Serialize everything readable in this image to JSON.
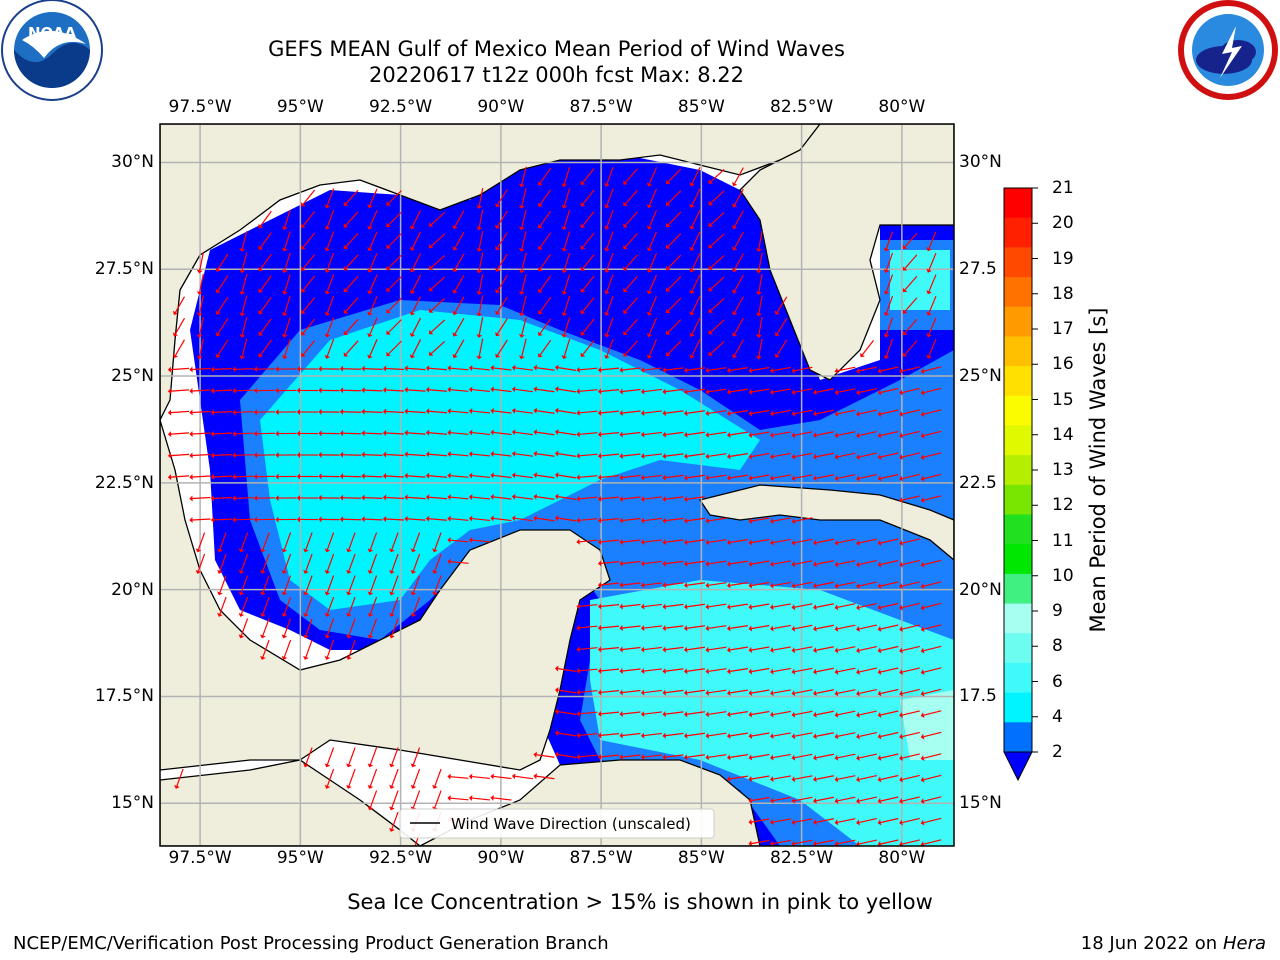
{
  "title": {
    "line1": "GEFS MEAN Gulf of Mexico Mean Period of Wind Waves",
    "line2": "20220617 t12z 000h fcst   Max: 8.22"
  },
  "logos": {
    "noaa_text": "NOAA",
    "noaa_ring": "NATIONAL OCEANIC AND ATMOSPHERIC ADMINISTRATION · U.S. DEPARTMENT OF COMMERCE",
    "nws_ring": "NATIONAL WEATHER SERVICE"
  },
  "map": {
    "lon_range": [
      -98.5,
      -78.7
    ],
    "lat_range": [
      14.0,
      30.9
    ],
    "lon_ticks": [
      "97.5°W",
      "95°W",
      "92.5°W",
      "90°W",
      "87.5°W",
      "85°W",
      "82.5°W",
      "80°W"
    ],
    "lat_ticks_left": [
      "30°N",
      "27.5°N",
      "25°N",
      "22.5°N",
      "20°N",
      "17.5°N",
      "15°N"
    ],
    "lat_ticks_right": [
      "30°N",
      "27.5",
      "25°N",
      "22.5",
      "20°N",
      "17.5",
      "15°N"
    ],
    "grid": true,
    "land_color": "#efeedc",
    "legend": {
      "label": "Wind Wave Direction (unscaled)",
      "placement": "bottom-center"
    }
  },
  "colorbar": {
    "label": "Mean Period of Wind Waves [s]",
    "ticks": [
      "21",
      "20",
      "19",
      "18",
      "17",
      "16",
      "15",
      "14",
      "13",
      "12",
      "11",
      "10",
      "9",
      "8",
      "6",
      "4",
      "2"
    ],
    "colors": [
      "#ff0000",
      "#ff2000",
      "#ff4800",
      "#ff7200",
      "#ff9a00",
      "#ffc000",
      "#ffe000",
      "#fcfc00",
      "#e0f800",
      "#b6ee00",
      "#78e600",
      "#20e020",
      "#00e800",
      "#40f080",
      "#a6fff0",
      "#6cfcf0",
      "#40fafa",
      "#00f4ff",
      "#0070ff"
    ],
    "extend_color": "#0000ff"
  },
  "chart_data": {
    "type": "heatmap",
    "variable": "Mean Period of Wind Waves [s]",
    "max": 8.22,
    "fcst": "000h",
    "cycle": "20220617 t12z"
  },
  "footer": {
    "note": "Sea Ice Concentration > 15% is shown in pink to yellow",
    "org": "NCEP/EMC/Verification Post Processing Product Generation Branch",
    "date": "18 Jun 2022 on",
    "machine": "Hera"
  }
}
